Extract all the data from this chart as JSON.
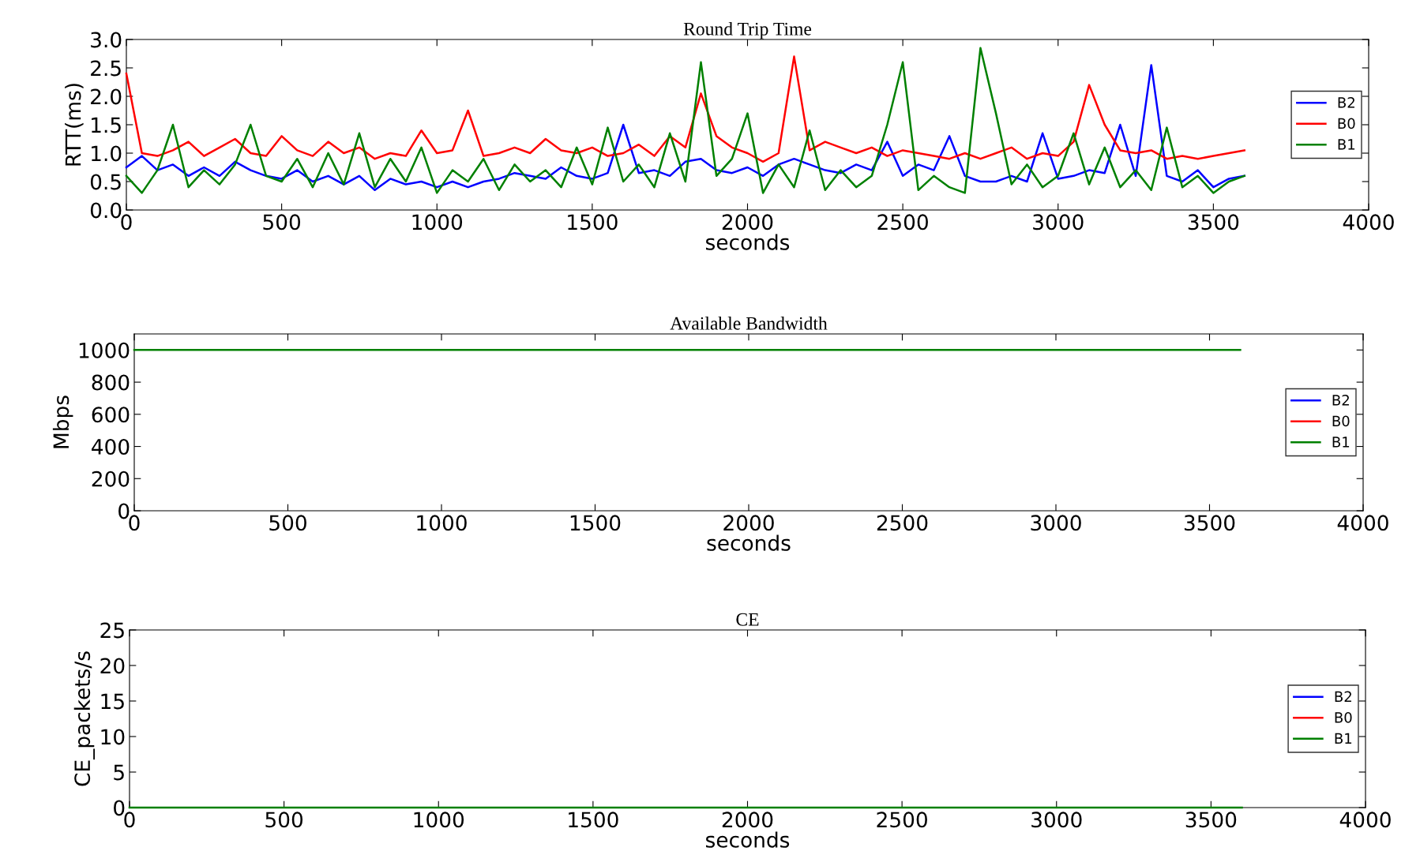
{
  "chart_data": [
    {
      "type": "line",
      "title": "Round Trip Time",
      "xlabel": "seconds",
      "ylabel": "RTT(ms)",
      "xlim": [
        0,
        4000
      ],
      "xticks": [
        0,
        500,
        1000,
        1500,
        2000,
        2500,
        3000,
        3500,
        4000
      ],
      "ylim": [
        0,
        3
      ],
      "yticks": [
        {
          "value": 0,
          "label": "0.0"
        },
        0.5,
        {
          "value": 1,
          "label": "1.0"
        },
        1.5,
        {
          "value": 2,
          "label": "2.0"
        },
        2.5,
        {
          "value": 3,
          "label": "3.0"
        }
      ],
      "legend": "center right",
      "grid": false,
      "x": [
        0,
        50,
        100,
        150,
        200,
        250,
        300,
        350,
        400,
        450,
        500,
        550,
        600,
        650,
        700,
        750,
        800,
        850,
        900,
        950,
        1000,
        1050,
        1100,
        1150,
        1200,
        1250,
        1300,
        1350,
        1400,
        1450,
        1500,
        1550,
        1600,
        1650,
        1700,
        1750,
        1800,
        1850,
        1900,
        1950,
        2000,
        2050,
        2100,
        2150,
        2200,
        2250,
        2300,
        2350,
        2400,
        2450,
        2500,
        2550,
        2600,
        2650,
        2700,
        2750,
        2800,
        2850,
        2900,
        2950,
        3000,
        3050,
        3100,
        3150,
        3200,
        3250,
        3300,
        3350,
        3400,
        3450,
        3500,
        3550,
        3600
      ],
      "series": [
        {
          "name": "B2",
          "color": "#0000ff",
          "values": [
            0.75,
            0.95,
            0.7,
            0.8,
            0.6,
            0.75,
            0.6,
            0.85,
            0.7,
            0.6,
            0.55,
            0.7,
            0.5,
            0.6,
            0.45,
            0.6,
            0.35,
            0.55,
            0.45,
            0.5,
            0.4,
            0.5,
            0.4,
            0.5,
            0.55,
            0.65,
            0.6,
            0.55,
            0.75,
            0.6,
            0.55,
            0.65,
            1.5,
            0.65,
            0.7,
            0.6,
            0.85,
            0.9,
            0.7,
            0.65,
            0.75,
            0.6,
            0.8,
            0.9,
            0.8,
            0.7,
            0.65,
            0.8,
            0.7,
            1.2,
            0.6,
            0.8,
            0.7,
            1.3,
            0.6,
            0.5,
            0.5,
            0.6,
            0.5,
            1.35,
            0.55,
            0.6,
            0.7,
            0.65,
            1.5,
            0.6,
            2.55,
            0.6,
            0.5,
            0.7,
            0.4,
            0.55,
            0.6
          ]
        },
        {
          "name": "B0",
          "color": "#ff0000",
          "values": [
            2.4,
            1.0,
            0.95,
            1.05,
            1.2,
            0.95,
            1.1,
            1.25,
            1.0,
            0.95,
            1.3,
            1.05,
            0.95,
            1.2,
            1.0,
            1.1,
            0.9,
            1.0,
            0.95,
            1.4,
            1.0,
            1.05,
            1.75,
            0.95,
            1.0,
            1.1,
            1.0,
            1.25,
            1.05,
            1.0,
            1.1,
            0.95,
            1.0,
            1.15,
            0.95,
            1.3,
            1.1,
            2.05,
            1.3,
            1.1,
            1.0,
            0.85,
            1.0,
            2.7,
            1.05,
            1.2,
            1.1,
            1.0,
            1.1,
            0.95,
            1.05,
            1.0,
            0.95,
            0.9,
            1.0,
            0.9,
            1.0,
            1.1,
            0.9,
            1.0,
            0.95,
            1.2,
            2.2,
            1.5,
            1.05,
            1.0,
            1.05,
            0.9,
            0.95,
            0.9,
            0.95,
            1.0,
            1.05
          ]
        },
        {
          "name": "B1",
          "color": "#008000",
          "values": [
            0.6,
            0.3,
            0.7,
            1.5,
            0.4,
            0.7,
            0.45,
            0.8,
            1.5,
            0.6,
            0.5,
            0.9,
            0.4,
            1.0,
            0.45,
            1.35,
            0.4,
            0.9,
            0.5,
            1.1,
            0.3,
            0.7,
            0.5,
            0.9,
            0.35,
            0.8,
            0.5,
            0.7,
            0.4,
            1.1,
            0.45,
            1.45,
            0.5,
            0.8,
            0.4,
            1.35,
            0.5,
            2.6,
            0.6,
            0.9,
            1.7,
            0.3,
            0.8,
            0.4,
            1.4,
            0.35,
            0.7,
            0.4,
            0.6,
            1.5,
            2.6,
            0.35,
            0.6,
            0.4,
            0.3,
            2.85,
            1.7,
            0.45,
            0.8,
            0.4,
            0.6,
            1.35,
            0.45,
            1.1,
            0.4,
            0.7,
            0.35,
            1.45,
            0.4,
            0.6,
            0.3,
            0.5,
            0.6
          ]
        }
      ]
    },
    {
      "type": "line",
      "title": "Available Bandwidth",
      "xlabel": "seconds",
      "ylabel": "Mbps",
      "xlim": [
        0,
        4000
      ],
      "xticks": [
        0,
        500,
        1000,
        1500,
        2000,
        2500,
        3000,
        3500,
        4000
      ],
      "ylim": [
        0,
        1100
      ],
      "yticks": [
        0,
        200,
        400,
        600,
        800,
        1000
      ],
      "legend": "center right",
      "grid": false,
      "x": [
        0,
        3600
      ],
      "series": [
        {
          "name": "B2",
          "color": "#0000ff",
          "values": [
            null,
            null
          ]
        },
        {
          "name": "B0",
          "color": "#ff0000",
          "values": [
            null,
            null
          ]
        },
        {
          "name": "B1",
          "color": "#008000",
          "values": [
            1000,
            1000
          ]
        }
      ]
    },
    {
      "type": "line",
      "title": "CE",
      "xlabel": "seconds",
      "ylabel": "CE_packets/s",
      "xlim": [
        0,
        4000
      ],
      "xticks": [
        0,
        500,
        1000,
        1500,
        2000,
        2500,
        3000,
        3500,
        4000
      ],
      "ylim": [
        0,
        25
      ],
      "yticks": [
        0,
        5,
        10,
        15,
        20,
        25
      ],
      "legend": "center right",
      "grid": false,
      "x": [
        0,
        3600
      ],
      "series": [
        {
          "name": "B2",
          "color": "#0000ff",
          "values": [
            null,
            null
          ]
        },
        {
          "name": "B0",
          "color": "#ff0000",
          "values": [
            null,
            null
          ]
        },
        {
          "name": "B1",
          "color": "#008000",
          "values": [
            0,
            0
          ]
        }
      ]
    }
  ]
}
